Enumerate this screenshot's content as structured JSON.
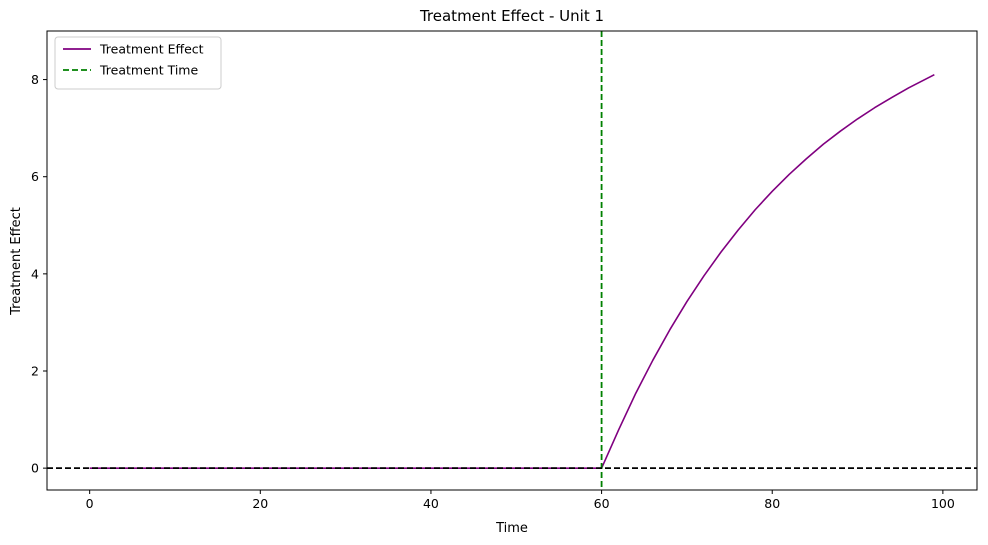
{
  "chart_data": {
    "type": "line",
    "title": "Treatment Effect - Unit 1",
    "xlabel": "Time",
    "ylabel": "Treatment Effect",
    "xlim": [
      -5,
      104
    ],
    "ylim": [
      -0.45,
      9.0
    ],
    "xticks": [
      0,
      20,
      40,
      60,
      80,
      100
    ],
    "yticks": [
      0,
      2,
      4,
      6,
      8
    ],
    "grid": false,
    "legend_position": "top-left",
    "series": [
      {
        "name": "Treatment Effect",
        "color": "#800080",
        "style": "solid",
        "x": [
          0,
          10,
          20,
          30,
          40,
          50,
          59,
          60,
          62,
          64,
          66,
          68,
          70,
          72,
          74,
          76,
          78,
          80,
          82,
          84,
          86,
          88,
          90,
          92,
          94,
          96,
          99
        ],
        "y": [
          0,
          0,
          0,
          0,
          0,
          0,
          0,
          0,
          0.79,
          1.54,
          2.22,
          2.85,
          3.43,
          3.96,
          4.45,
          4.9,
          5.32,
          5.7,
          6.05,
          6.37,
          6.67,
          6.94,
          7.19,
          7.42,
          7.63,
          7.83,
          8.1
        ]
      },
      {
        "name": "Treatment Time",
        "color": "#008000",
        "style": "dashed",
        "orientation": "vertical",
        "x_value": 60
      },
      {
        "color": "#000000",
        "style": "dashed",
        "orientation": "horizontal",
        "y_value": 0
      }
    ]
  }
}
